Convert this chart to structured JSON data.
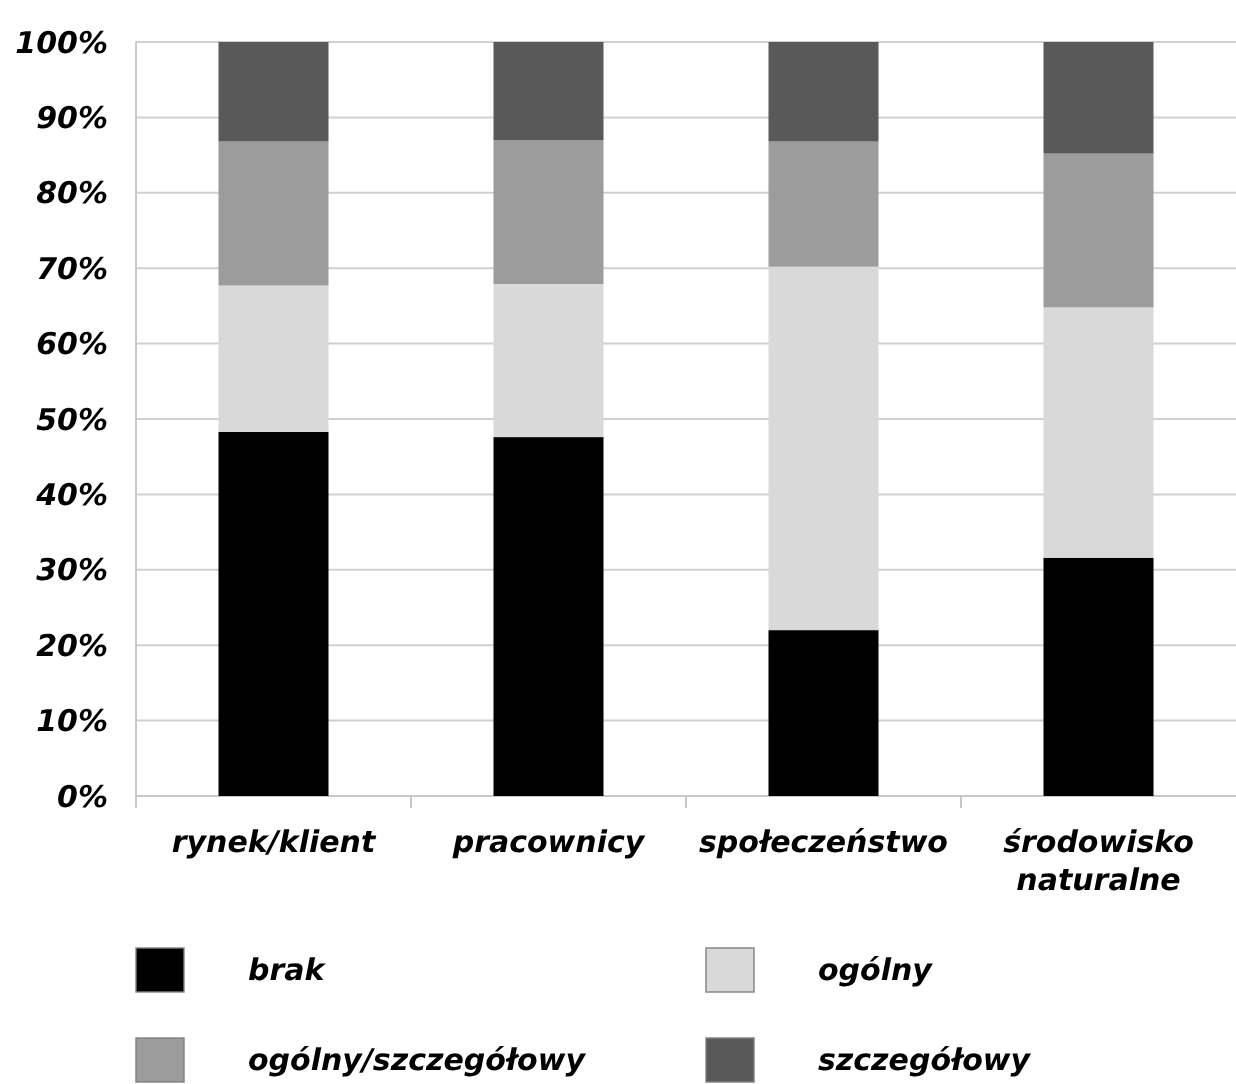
{
  "chart_data": {
    "type": "bar",
    "stacked": true,
    "categories": [
      "rynek/klient",
      "pracownicy",
      "społeczeństwo",
      "środowisko naturalne"
    ],
    "series": [
      {
        "name": "brak",
        "color": "#000000",
        "values": [
          48.3,
          47.6,
          22.0,
          31.6
        ]
      },
      {
        "name": "ogólny",
        "color": "#d9d9d9",
        "values": [
          19.4,
          20.3,
          48.2,
          33.2
        ]
      },
      {
        "name": "ogólny/szczegółowy",
        "color": "#9c9c9c",
        "values": [
          19.1,
          19.1,
          16.6,
          20.4
        ]
      },
      {
        "name": "szczegółowy",
        "color": "#595959",
        "values": [
          13.2,
          13.0,
          13.2,
          14.8
        ]
      }
    ],
    "ylim": [
      0,
      100
    ],
    "yticks": [
      {
        "value": 0,
        "label": "0%"
      },
      {
        "value": 10,
        "label": "10%"
      },
      {
        "value": 20,
        "label": "20%"
      },
      {
        "value": 30,
        "label": "30%"
      },
      {
        "value": 40,
        "label": "40%"
      },
      {
        "value": 50,
        "label": "50%"
      },
      {
        "value": 60,
        "label": "60%"
      },
      {
        "value": 70,
        "label": "70%"
      },
      {
        "value": 80,
        "label": "80%"
      },
      {
        "value": 90,
        "label": "90%"
      },
      {
        "value": 100,
        "label": "100%"
      }
    ],
    "grid": "y",
    "legend": "bottom"
  }
}
